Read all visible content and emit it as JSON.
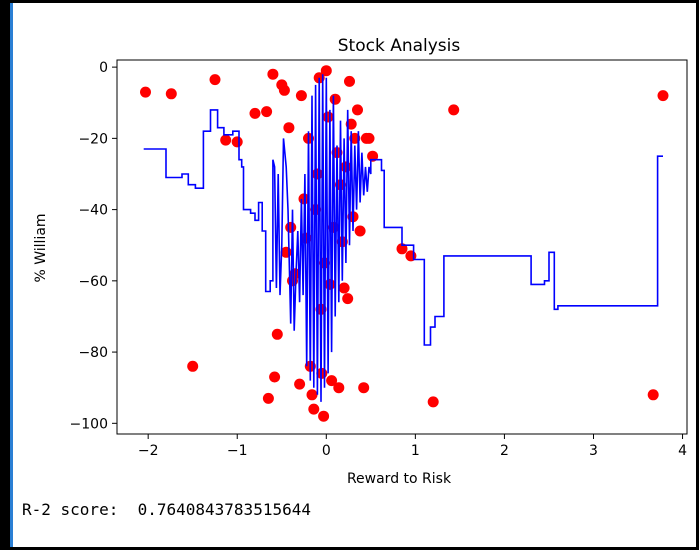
{
  "output": {
    "r2_label": "R-2 score:",
    "r2_value": "0.7640843783515644"
  },
  "chart_data": {
    "type": "scatter",
    "title": "Stock Analysis",
    "xlabel": "Reward to Risk",
    "ylabel": "% William",
    "xlim": [
      -2.35,
      4.05
    ],
    "ylim": [
      -103,
      2
    ],
    "xticks": [
      -2,
      -1,
      0,
      1,
      2,
      3,
      4
    ],
    "yticks": [
      0,
      -20,
      -40,
      -60,
      -80,
      -100
    ],
    "grid": false,
    "colors": {
      "scatter": "#ff0000",
      "line": "#0000ff",
      "axes": "#000000"
    },
    "series": [
      {
        "kind": "scatter",
        "points": [
          [
            -2.03,
            -7
          ],
          [
            -1.74,
            -7.5
          ],
          [
            -1.5,
            -84
          ],
          [
            -1.25,
            -3.5
          ],
          [
            -1.13,
            -20.5
          ],
          [
            -1.0,
            -21
          ],
          [
            -0.8,
            -13
          ],
          [
            -0.67,
            -12.5
          ],
          [
            -0.65,
            -93
          ],
          [
            -0.6,
            -2
          ],
          [
            -0.58,
            -87
          ],
          [
            -0.55,
            -75
          ],
          [
            -0.5,
            -5
          ],
          [
            -0.47,
            -6.5
          ],
          [
            -0.45,
            -52
          ],
          [
            -0.42,
            -17
          ],
          [
            -0.4,
            -45
          ],
          [
            -0.38,
            -60
          ],
          [
            -0.35,
            -58
          ],
          [
            -0.3,
            -89
          ],
          [
            -0.28,
            -8
          ],
          [
            -0.25,
            -37
          ],
          [
            -0.23,
            -48
          ],
          [
            -0.2,
            -20
          ],
          [
            -0.18,
            -84
          ],
          [
            -0.16,
            -92
          ],
          [
            -0.14,
            -96
          ],
          [
            -0.12,
            -40
          ],
          [
            -0.1,
            -30
          ],
          [
            -0.08,
            -3
          ],
          [
            -0.06,
            -68
          ],
          [
            -0.05,
            -86
          ],
          [
            -0.03,
            -98
          ],
          [
            -0.02,
            -55
          ],
          [
            0.0,
            -1
          ],
          [
            0.02,
            -14
          ],
          [
            0.04,
            -61
          ],
          [
            0.06,
            -88
          ],
          [
            0.08,
            -45
          ],
          [
            0.1,
            -9
          ],
          [
            0.12,
            -24
          ],
          [
            0.14,
            -90
          ],
          [
            0.16,
            -33
          ],
          [
            0.18,
            -49
          ],
          [
            0.2,
            -62
          ],
          [
            0.22,
            -28
          ],
          [
            0.24,
            -65
          ],
          [
            0.26,
            -4
          ],
          [
            0.28,
            -16
          ],
          [
            0.3,
            -42
          ],
          [
            0.32,
            -20
          ],
          [
            0.35,
            -12
          ],
          [
            0.38,
            -46
          ],
          [
            0.42,
            -90
          ],
          [
            0.45,
            -20
          ],
          [
            0.48,
            -20
          ],
          [
            0.52,
            -25
          ],
          [
            0.85,
            -51
          ],
          [
            0.95,
            -53
          ],
          [
            1.2,
            -94
          ],
          [
            1.43,
            -12
          ],
          [
            3.67,
            -92
          ],
          [
            3.78,
            -8
          ]
        ]
      },
      {
        "kind": "line",
        "points": [
          [
            -2.05,
            -23
          ],
          [
            -1.8,
            -23
          ],
          [
            -1.8,
            -31
          ],
          [
            -1.62,
            -31
          ],
          [
            -1.62,
            -30
          ],
          [
            -1.55,
            -30
          ],
          [
            -1.55,
            -33
          ],
          [
            -1.47,
            -33
          ],
          [
            -1.47,
            -34
          ],
          [
            -1.38,
            -34
          ],
          [
            -1.38,
            -18
          ],
          [
            -1.3,
            -18
          ],
          [
            -1.3,
            -12
          ],
          [
            -1.22,
            -12
          ],
          [
            -1.22,
            -17
          ],
          [
            -1.15,
            -17
          ],
          [
            -1.15,
            -19
          ],
          [
            -1.05,
            -19
          ],
          [
            -1.05,
            -18
          ],
          [
            -0.98,
            -18
          ],
          [
            -0.98,
            -26
          ],
          [
            -0.95,
            -26
          ],
          [
            -0.95,
            -28
          ],
          [
            -0.93,
            -28
          ],
          [
            -0.93,
            -40
          ],
          [
            -0.85,
            -40
          ],
          [
            -0.85,
            -41
          ],
          [
            -0.8,
            -41
          ],
          [
            -0.8,
            -43
          ],
          [
            -0.76,
            -43
          ],
          [
            -0.76,
            -38
          ],
          [
            -0.72,
            -38
          ],
          [
            -0.72,
            -46
          ],
          [
            -0.68,
            -46
          ],
          [
            -0.68,
            -63
          ],
          [
            -0.63,
            -63
          ],
          [
            -0.63,
            -60
          ],
          [
            -0.6,
            -60
          ],
          [
            -0.6,
            -26
          ],
          [
            -0.58,
            -28
          ],
          [
            -0.56,
            -62
          ],
          [
            -0.54,
            -30
          ],
          [
            -0.52,
            -64
          ],
          [
            -0.5,
            -50
          ],
          [
            -0.48,
            -20
          ],
          [
            -0.45,
            -28
          ],
          [
            -0.43,
            -40
          ],
          [
            -0.4,
            -72
          ],
          [
            -0.38,
            -40
          ],
          [
            -0.36,
            -74
          ],
          [
            -0.34,
            -58
          ],
          [
            -0.32,
            -46
          ],
          [
            -0.3,
            -66
          ],
          [
            -0.28,
            -37
          ],
          [
            -0.26,
            -64
          ],
          [
            -0.24,
            -30
          ],
          [
            -0.22,
            -84
          ],
          [
            -0.2,
            -18
          ],
          [
            -0.18,
            -88
          ],
          [
            -0.16,
            -8
          ],
          [
            -0.14,
            -90
          ],
          [
            -0.12,
            -5
          ],
          [
            -0.1,
            -92
          ],
          [
            -0.08,
            -3
          ],
          [
            -0.06,
            -94
          ],
          [
            -0.04,
            -2
          ],
          [
            -0.02,
            -90
          ],
          [
            0.0,
            -3
          ],
          [
            0.02,
            -86
          ],
          [
            0.04,
            -12
          ],
          [
            0.06,
            -80
          ],
          [
            0.08,
            -8
          ],
          [
            0.1,
            -70
          ],
          [
            0.12,
            -22
          ],
          [
            0.14,
            -66
          ],
          [
            0.16,
            -15
          ],
          [
            0.18,
            -60
          ],
          [
            0.2,
            -20
          ],
          [
            0.22,
            -55
          ],
          [
            0.24,
            -12
          ],
          [
            0.26,
            -50
          ],
          [
            0.28,
            -18
          ],
          [
            0.3,
            -46
          ],
          [
            0.32,
            -22
          ],
          [
            0.34,
            -40
          ],
          [
            0.36,
            -18
          ],
          [
            0.38,
            -38
          ],
          [
            0.4,
            -24
          ],
          [
            0.42,
            -36
          ],
          [
            0.44,
            -28
          ],
          [
            0.46,
            -35
          ],
          [
            0.48,
            -28
          ],
          [
            0.5,
            -30
          ],
          [
            0.5,
            -26
          ],
          [
            0.62,
            -26
          ],
          [
            0.62,
            -29
          ],
          [
            0.65,
            -29
          ],
          [
            0.65,
            -45
          ],
          [
            0.85,
            -45
          ],
          [
            0.85,
            -50
          ],
          [
            0.98,
            -50
          ],
          [
            0.98,
            -54
          ],
          [
            1.1,
            -54
          ],
          [
            1.1,
            -60
          ],
          [
            1.1,
            -78
          ],
          [
            1.17,
            -78
          ],
          [
            1.17,
            -73
          ],
          [
            1.22,
            -73
          ],
          [
            1.22,
            -70
          ],
          [
            1.32,
            -70
          ],
          [
            1.32,
            -53
          ],
          [
            2.3,
            -53
          ],
          [
            2.3,
            -61
          ],
          [
            2.45,
            -61
          ],
          [
            2.45,
            -60
          ],
          [
            2.5,
            -60
          ],
          [
            2.5,
            -52
          ],
          [
            2.56,
            -52
          ],
          [
            2.56,
            -68
          ],
          [
            2.6,
            -68
          ],
          [
            2.6,
            -67
          ],
          [
            3.72,
            -67
          ],
          [
            3.72,
            -25
          ],
          [
            3.78,
            -25
          ]
        ]
      }
    ]
  }
}
